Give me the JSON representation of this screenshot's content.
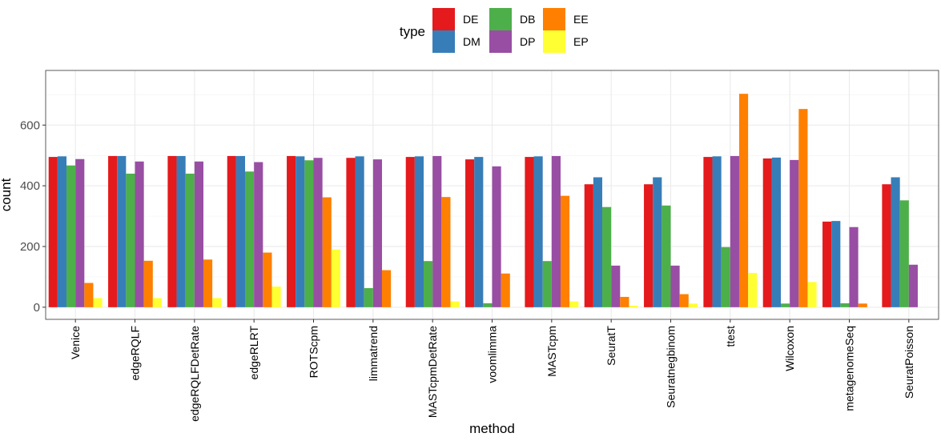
{
  "chart_data": {
    "type": "bar",
    "xlabel": "method",
    "ylabel": "count",
    "ylim": [
      -40,
      780
    ],
    "y_ticks": [
      0,
      200,
      400,
      600
    ],
    "grid": true,
    "legend": {
      "title": "type",
      "position": "top"
    },
    "categories": [
      "Venice",
      "edgeRQLF",
      "edgeRQLFDetRate",
      "edgeRLRT",
      "ROTScpm",
      "limmatrend",
      "MASTcpmDetRate",
      "voomlimma",
      "MASTcpm",
      "SeuratT",
      "Seuratnegbinom",
      "ttest",
      "Wilcoxon",
      "metagenomeSeq",
      "SeuratPoisson"
    ],
    "series": [
      {
        "name": "DE",
        "color": "#E41A1C",
        "values": [
          495,
          498,
          498,
          498,
          498,
          492,
          495,
          487,
          495,
          405,
          405,
          495,
          490,
          282,
          405
        ]
      },
      {
        "name": "DM",
        "color": "#377EB8",
        "values": [
          497,
          498,
          498,
          498,
          497,
          497,
          497,
          495,
          497,
          428,
          428,
          497,
          493,
          284,
          428
        ]
      },
      {
        "name": "DB",
        "color": "#4DAF4A",
        "values": [
          467,
          440,
          440,
          447,
          484,
          63,
          152,
          13,
          152,
          330,
          335,
          198,
          12,
          13,
          352
        ]
      },
      {
        "name": "DP",
        "color": "#984EA3",
        "values": [
          488,
          480,
          480,
          478,
          492,
          487,
          498,
          464,
          498,
          137,
          137,
          498,
          485,
          264,
          140
        ]
      },
      {
        "name": "EE",
        "color": "#FF7F00",
        "values": [
          80,
          153,
          157,
          180,
          362,
          122,
          363,
          111,
          367,
          34,
          43,
          703,
          653,
          12,
          0
        ]
      },
      {
        "name": "EP",
        "color": "#FFFF33",
        "values": [
          30,
          30,
          30,
          68,
          190,
          0,
          19,
          0,
          19,
          5,
          12,
          113,
          83,
          0,
          0
        ]
      }
    ]
  }
}
